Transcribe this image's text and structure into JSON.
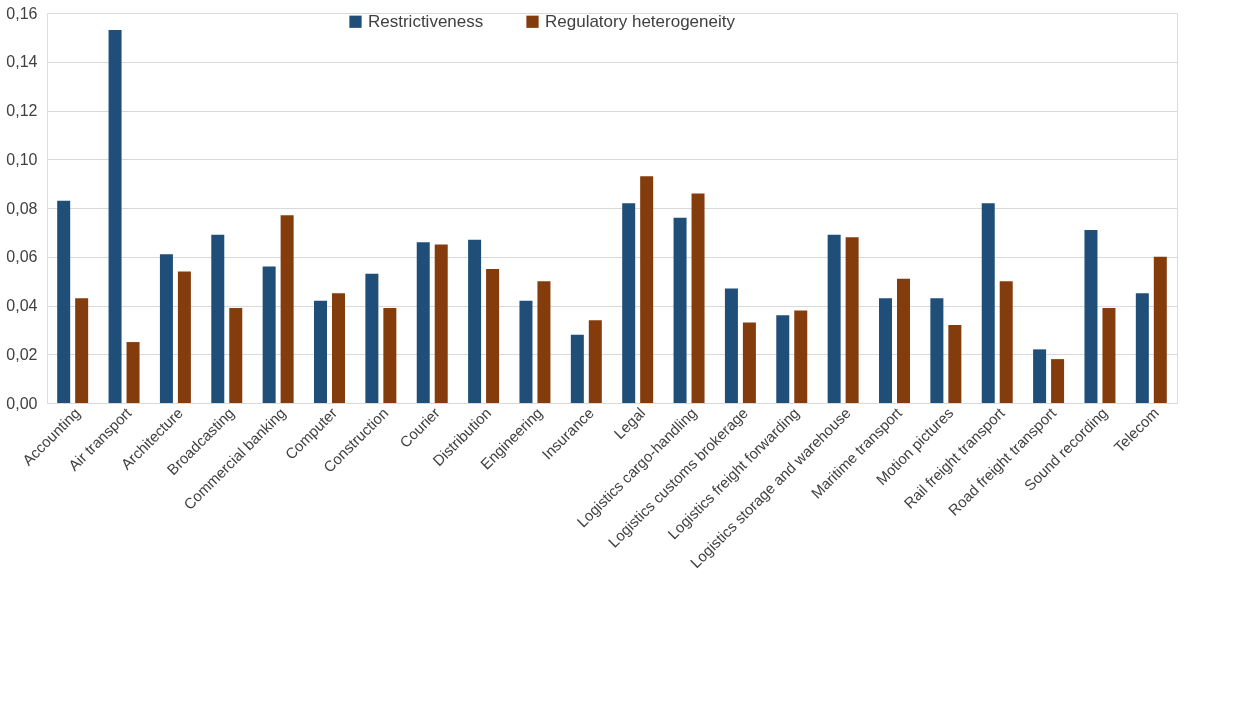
{
  "chart_data": {
    "type": "bar",
    "categories": [
      "Accounting",
      "Air transport",
      "Architecture",
      "Broadcasting",
      "Commercial banking",
      "Computer",
      "Construction",
      "Courier",
      "Distribution",
      "Engineering",
      "Insurance",
      "Legal",
      "Logistics cargo-handling",
      "Logistics customs brokerage",
      "Logistics freight forwarding",
      "Logistics storage and warehouse",
      "Maritime transport",
      "Motion pictures",
      "Rail freight transport",
      "Road freight transport",
      "Sound recording",
      "Telecom"
    ],
    "series": [
      {
        "name": "Restrictiveness",
        "color": "#1f4e79",
        "values": [
          0.083,
          0.153,
          0.061,
          0.069,
          0.056,
          0.042,
          0.053,
          0.066,
          0.067,
          0.042,
          0.028,
          0.082,
          0.076,
          0.047,
          0.036,
          0.069,
          0.043,
          0.043,
          0.082,
          0.022,
          0.071,
          0.045
        ]
      },
      {
        "name": "Regulatory heterogeneity",
        "color": "#843c0c",
        "values": [
          0.043,
          0.025,
          0.054,
          0.039,
          0.077,
          0.045,
          0.039,
          0.065,
          0.055,
          0.05,
          0.034,
          0.093,
          0.086,
          0.033,
          0.038,
          0.068,
          0.051,
          0.032,
          0.05,
          0.018,
          0.039,
          0.06
        ]
      }
    ],
    "ylim": [
      0,
      0.16
    ],
    "yticks": [
      {
        "value": 0,
        "label": "0,00"
      },
      {
        "value": 0.02,
        "label": "0,02"
      },
      {
        "value": 0.04,
        "label": "0,04"
      },
      {
        "value": 0.06,
        "label": "0,06"
      },
      {
        "value": 0.08,
        "label": "0,08"
      },
      {
        "value": 0.1,
        "label": "0,10"
      },
      {
        "value": 0.12,
        "label": "0,12"
      },
      {
        "value": 0.14,
        "label": "0,14"
      },
      {
        "value": 0.16,
        "label": "0,16"
      }
    ],
    "grid": "y",
    "legend": "top"
  }
}
